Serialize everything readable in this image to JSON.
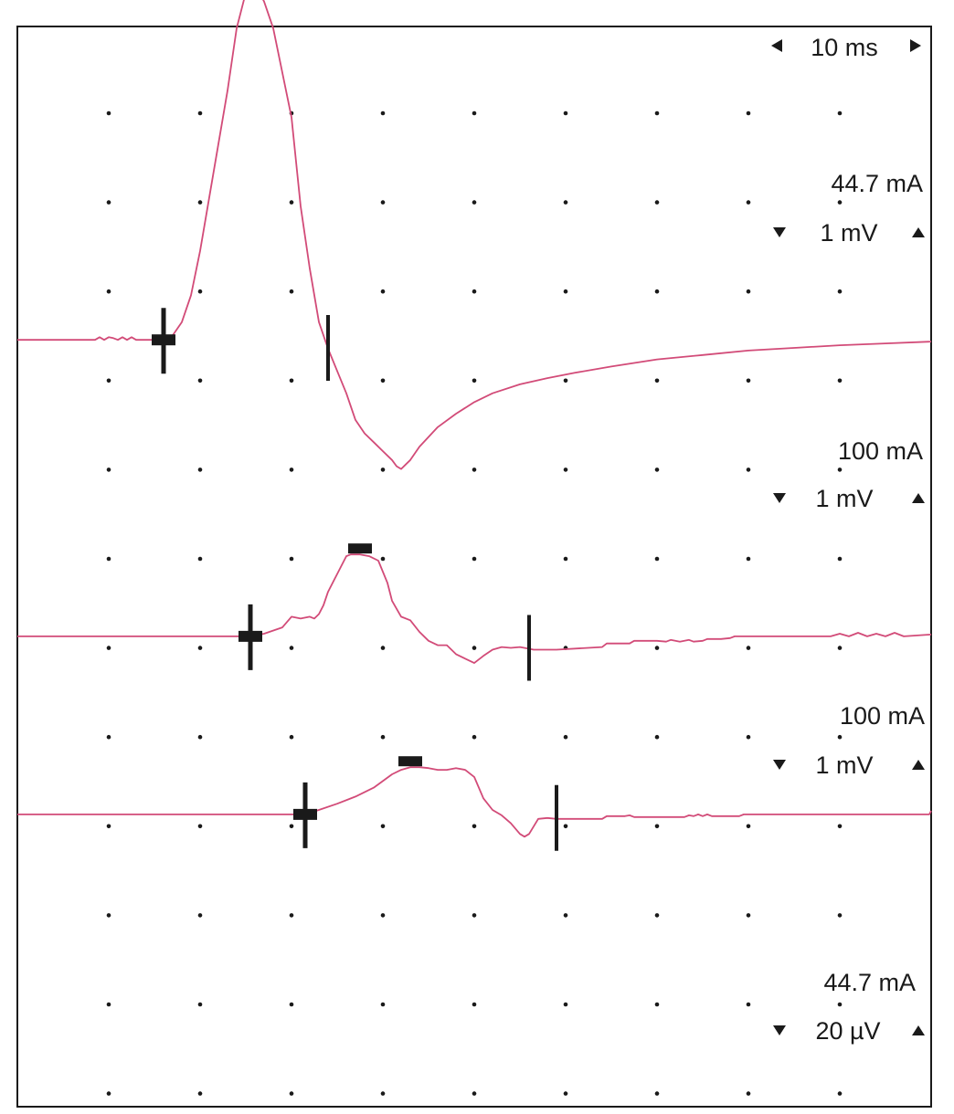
{
  "chart_data": {
    "type": "line",
    "title": "",
    "timebase": {
      "label": "10 ms",
      "left_arrow_icon": "triangle-left-icon",
      "right_arrow_icon": "triangle-right-icon"
    },
    "grid": {
      "on": true,
      "style": "dots",
      "columns": 10,
      "rows": 12
    },
    "x_range_ms": [
      0,
      100
    ],
    "trace_color": "#d24b78",
    "marker_color": "#1a1a1a",
    "channels": [
      {
        "name": "",
        "stim_label": "44.7 mA",
        "gain_label": "1 mV",
        "gain_units_per_div": 1,
        "baseline_div": 3.52,
        "down_arrow_icon": "triangle-down-icon",
        "up_arrow_icon": "triangle-up-icon",
        "onset_ms": 16,
        "peak_ms": 26,
        "end_ms": 34,
        "waveform": {
          "t": [
            0,
            8.5,
            9,
            9.5,
            10,
            10.5,
            11,
            11.5,
            12,
            12.5,
            13,
            14,
            15,
            16,
            17,
            18,
            19,
            20,
            21,
            22,
            23,
            24,
            25,
            25.5,
            26,
            26.5,
            27,
            28,
            29,
            30,
            30.5,
            31,
            32,
            33,
            34,
            35,
            36,
            37,
            38,
            39,
            40,
            41,
            41.5,
            42,
            42.5,
            43,
            44,
            46,
            48,
            50,
            52,
            55,
            58,
            61,
            65,
            70,
            75,
            80,
            85,
            90,
            95,
            100
          ],
          "v": [
            0,
            0,
            0.03,
            0,
            0.03,
            0.02,
            0,
            0.03,
            0,
            0.03,
            0,
            0,
            0,
            0,
            0.05,
            0.2,
            0.5,
            1.0,
            1.6,
            2.2,
            2.8,
            3.5,
            3.9,
            3.95,
            3.95,
            3.9,
            3.8,
            3.5,
            3.0,
            2.5,
            2.0,
            1.5,
            0.8,
            0.2,
            -0.1,
            -0.35,
            -0.6,
            -0.9,
            -1.05,
            -1.15,
            -1.25,
            -1.35,
            -1.42,
            -1.45,
            -1.4,
            -1.35,
            -1.2,
            -0.98,
            -0.83,
            -0.7,
            -0.6,
            -0.5,
            -0.43,
            -0.37,
            -0.3,
            -0.22,
            -0.17,
            -0.12,
            -0.09,
            -0.06,
            -0.04,
            -0.02
          ]
        }
      },
      {
        "name": "",
        "stim_label": "100 mA",
        "gain_label": "1 mV",
        "gain_units_per_div": 1,
        "baseline_div": 6.85,
        "down_arrow_icon": "triangle-down-icon",
        "up_arrow_icon": "triangle-up-icon",
        "onset_ms": 25.5,
        "peak_ms": 37.5,
        "end_ms": 56,
        "waveform": {
          "t": [
            0,
            25.5,
            27,
            29,
            30,
            31,
            32,
            32.5,
            33,
            33.5,
            34,
            35,
            36,
            36.5,
            37.5,
            38.5,
            39.5,
            40.5,
            41,
            42,
            43,
            44,
            45,
            46,
            47,
            48,
            49,
            50,
            51,
            52,
            53,
            54,
            55,
            56,
            56.5,
            59,
            64,
            64.5,
            67,
            67.5,
            70,
            71,
            71.5,
            72.5,
            73.5,
            74,
            75,
            75.5,
            77,
            78,
            78.5,
            80,
            89,
            90,
            91,
            92,
            93,
            94,
            95,
            96,
            97,
            100
          ],
          "v": [
            0,
            0,
            0.03,
            0.1,
            0.22,
            0.2,
            0.22,
            0.2,
            0.25,
            0.35,
            0.5,
            0.7,
            0.9,
            0.92,
            0.92,
            0.9,
            0.85,
            0.6,
            0.4,
            0.22,
            0.18,
            0.05,
            -0.05,
            -0.1,
            -0.1,
            -0.2,
            -0.25,
            -0.3,
            -0.22,
            -0.15,
            -0.12,
            -0.13,
            -0.12,
            -0.14,
            -0.15,
            -0.15,
            -0.12,
            -0.08,
            -0.08,
            -0.05,
            -0.05,
            -0.06,
            -0.04,
            -0.06,
            -0.04,
            -0.06,
            -0.05,
            -0.03,
            -0.03,
            -0.02,
            0.0,
            0.0,
            0.0,
            0.03,
            0.0,
            0.04,
            0.0,
            0.03,
            0.0,
            0.04,
            0.0,
            0.02
          ]
        }
      },
      {
        "name": "",
        "stim_label": "100 mA",
        "gain_label": "1 mV",
        "gain_units_per_div": 1,
        "baseline_div": 8.85,
        "down_arrow_icon": "triangle-down-icon",
        "up_arrow_icon": "triangle-up-icon",
        "onset_ms": 31.5,
        "peak_ms": 43,
        "end_ms": 59,
        "waveform": {
          "t": [
            0,
            31.5,
            33,
            35,
            37,
            39,
            41,
            42,
            43,
            44,
            45,
            46,
            47,
            48,
            49,
            50,
            51,
            52,
            53,
            54,
            55,
            55.5,
            56,
            57,
            58,
            59,
            60,
            64,
            64.5,
            66.5,
            67,
            67.5,
            73,
            73.5,
            74,
            74.5,
            75,
            75.5,
            76,
            79,
            79.5,
            79.8,
            99.8,
            100
          ],
          "v": [
            0,
            0,
            0.05,
            0.12,
            0.2,
            0.3,
            0.45,
            0.5,
            0.53,
            0.53,
            0.52,
            0.5,
            0.5,
            0.52,
            0.5,
            0.42,
            0.18,
            0.05,
            -0.01,
            -0.1,
            -0.22,
            -0.25,
            -0.22,
            -0.05,
            -0.04,
            -0.05,
            -0.05,
            -0.05,
            -0.02,
            -0.02,
            -0.01,
            -0.03,
            -0.03,
            -0.01,
            -0.02,
            0.0,
            -0.02,
            0.0,
            -0.02,
            -0.02,
            0.0,
            0.0,
            0.0,
            0.04
          ]
        }
      }
    ],
    "bottom_scale": {
      "stim_label": "44.7 mA",
      "gain_label": "20 µV",
      "down_arrow_icon": "triangle-down-icon",
      "up_arrow_icon": "triangle-up-icon"
    }
  }
}
